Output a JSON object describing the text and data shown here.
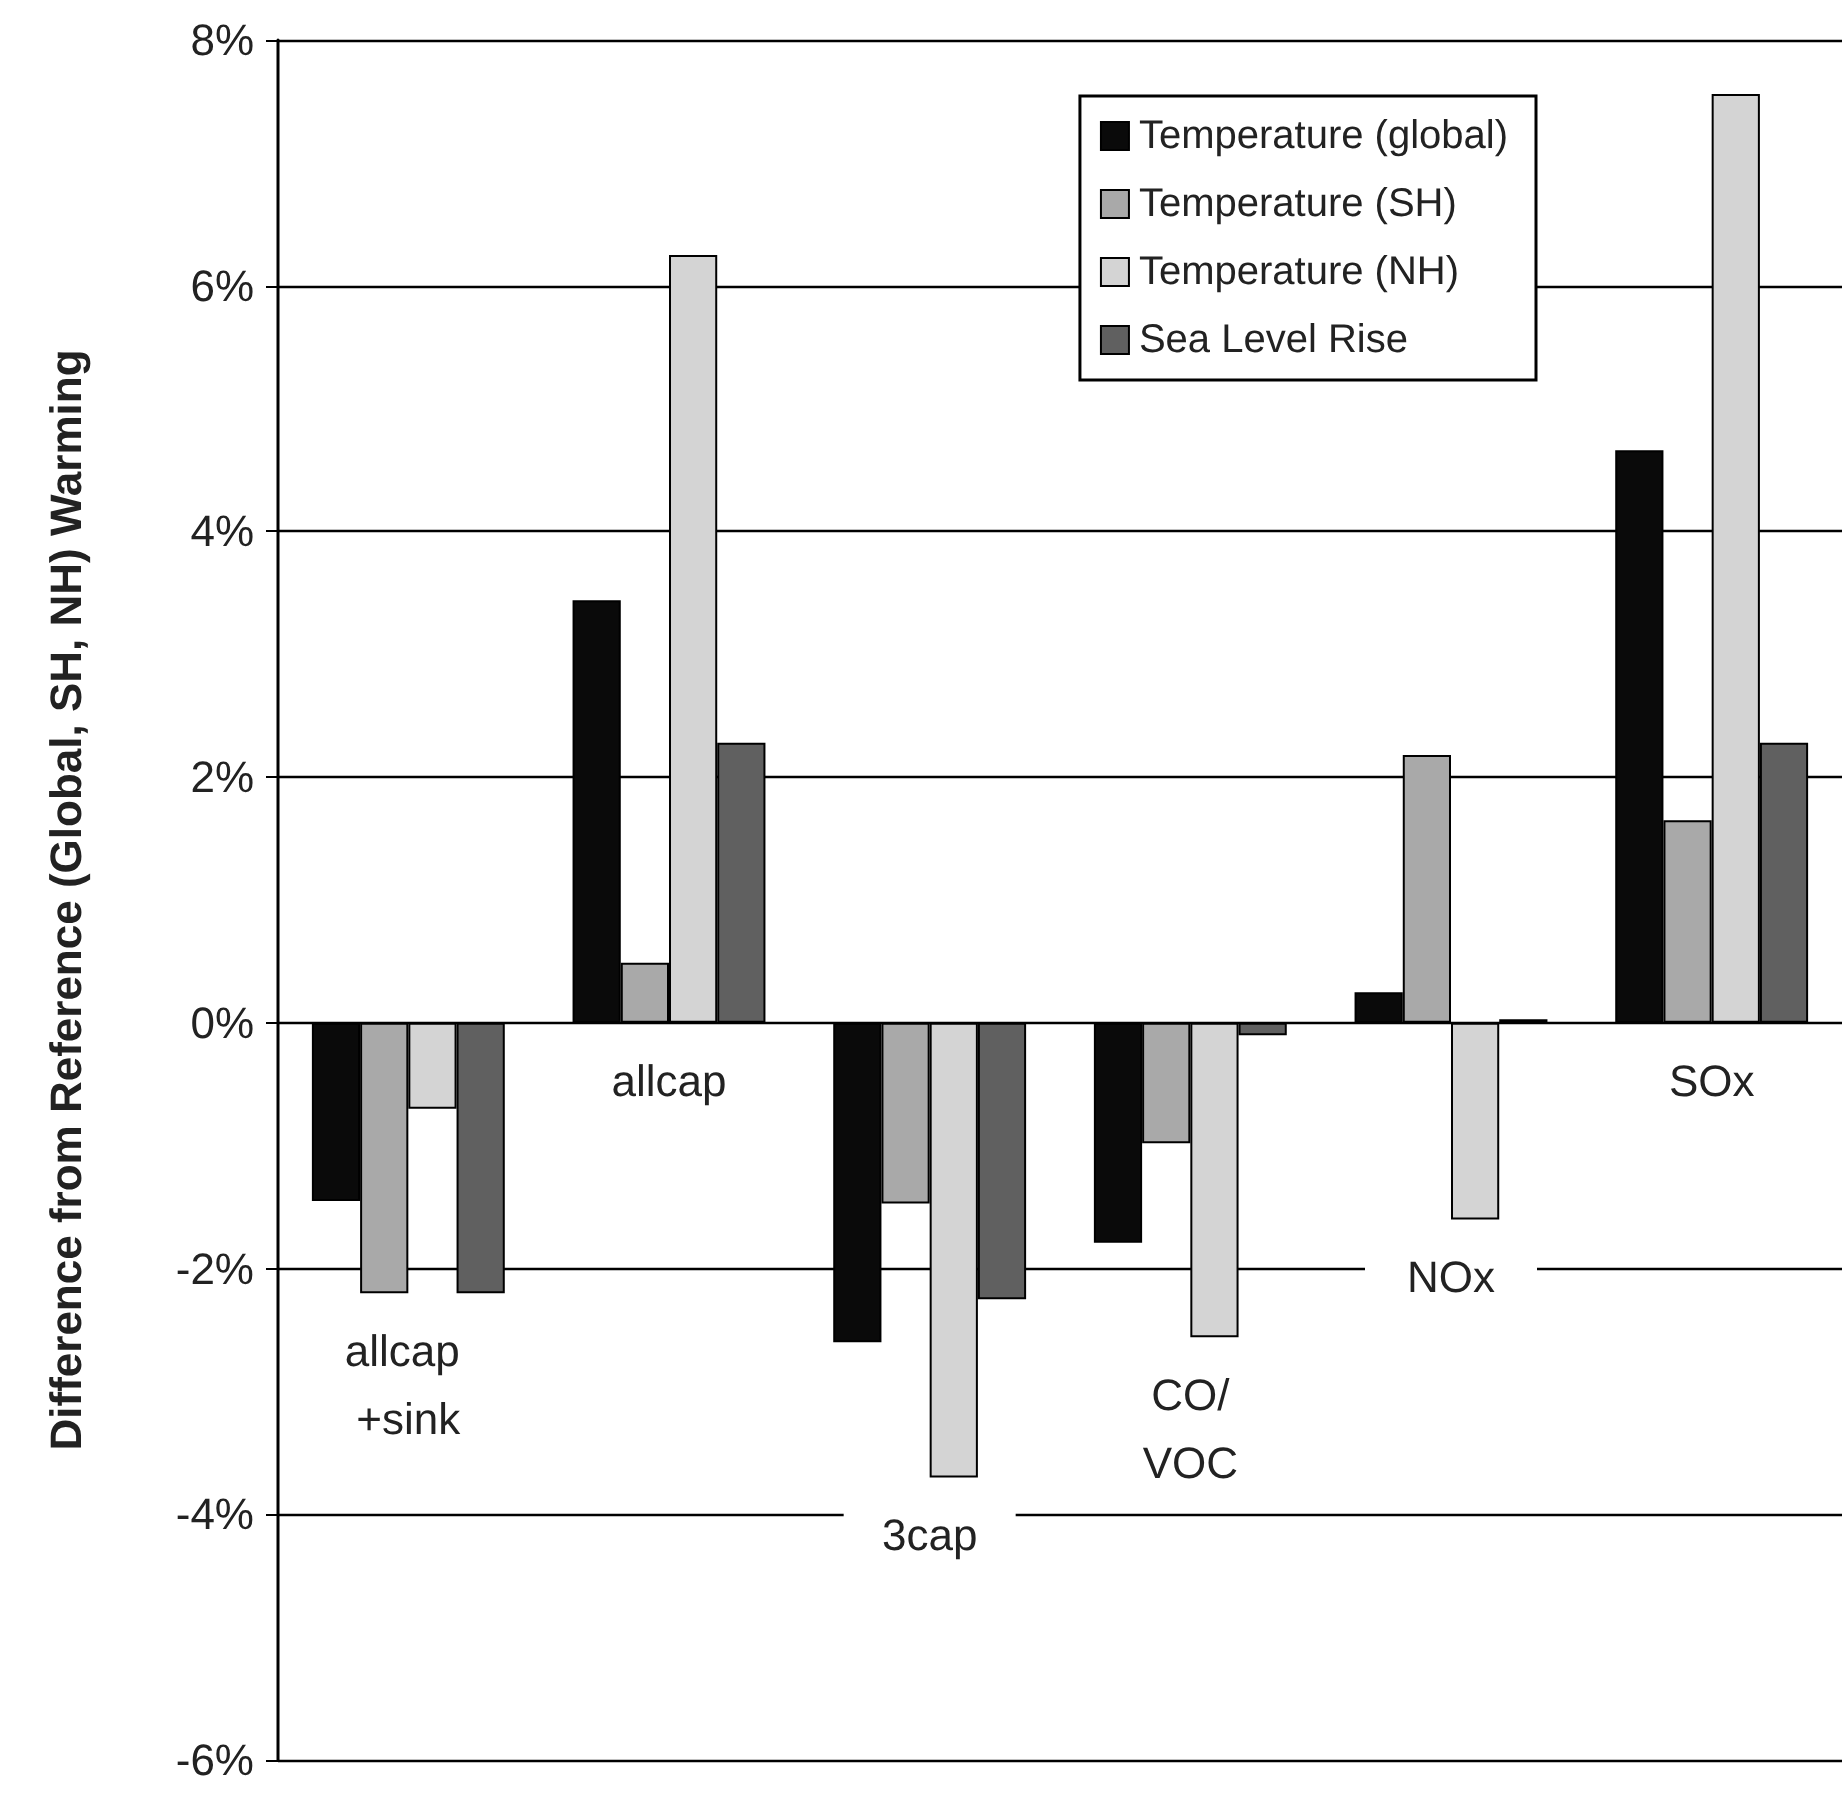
{
  "chart_data": {
    "type": "bar",
    "ylabel": "Difference from Reference (Global, SH, NH) Warming",
    "categories": [
      "allcap +sink",
      "allcap",
      "3cap",
      "CO/VOC",
      "NOx",
      "SOx"
    ],
    "series": [
      {
        "name": "Temperature (global)",
        "color": "#0a0a0a",
        "values": [
          -1.45,
          3.44,
          -2.6,
          -1.79,
          0.25,
          4.66
        ]
      },
      {
        "name": "Temperature (SH)",
        "color": "#a9a9a9",
        "values": [
          -2.2,
          0.49,
          -1.47,
          -0.98,
          2.18,
          1.65
        ]
      },
      {
        "name": "Temperature (NH)",
        "color": "#d4d4d4",
        "values": [
          -0.7,
          6.25,
          -3.7,
          -2.56,
          -1.6,
          7.56
        ]
      },
      {
        "name": "Sea Level Rise",
        "color": "#606060",
        "values": [
          -2.2,
          2.28,
          -2.25,
          -0.1,
          0.03,
          2.28
        ]
      }
    ],
    "ylim": [
      -6,
      8
    ],
    "yticks": [
      {
        "value": -6,
        "label": "-6%"
      },
      {
        "value": -4,
        "label": "-4%"
      },
      {
        "value": -2,
        "label": "-2%"
      },
      {
        "value": 0,
        "label": "0%"
      },
      {
        "value": 2,
        "label": "2%"
      },
      {
        "value": 4,
        "label": "4%"
      },
      {
        "value": 6,
        "label": "6%"
      },
      {
        "value": 8,
        "label": "8%"
      }
    ],
    "grid": "y",
    "legend": "top right"
  }
}
